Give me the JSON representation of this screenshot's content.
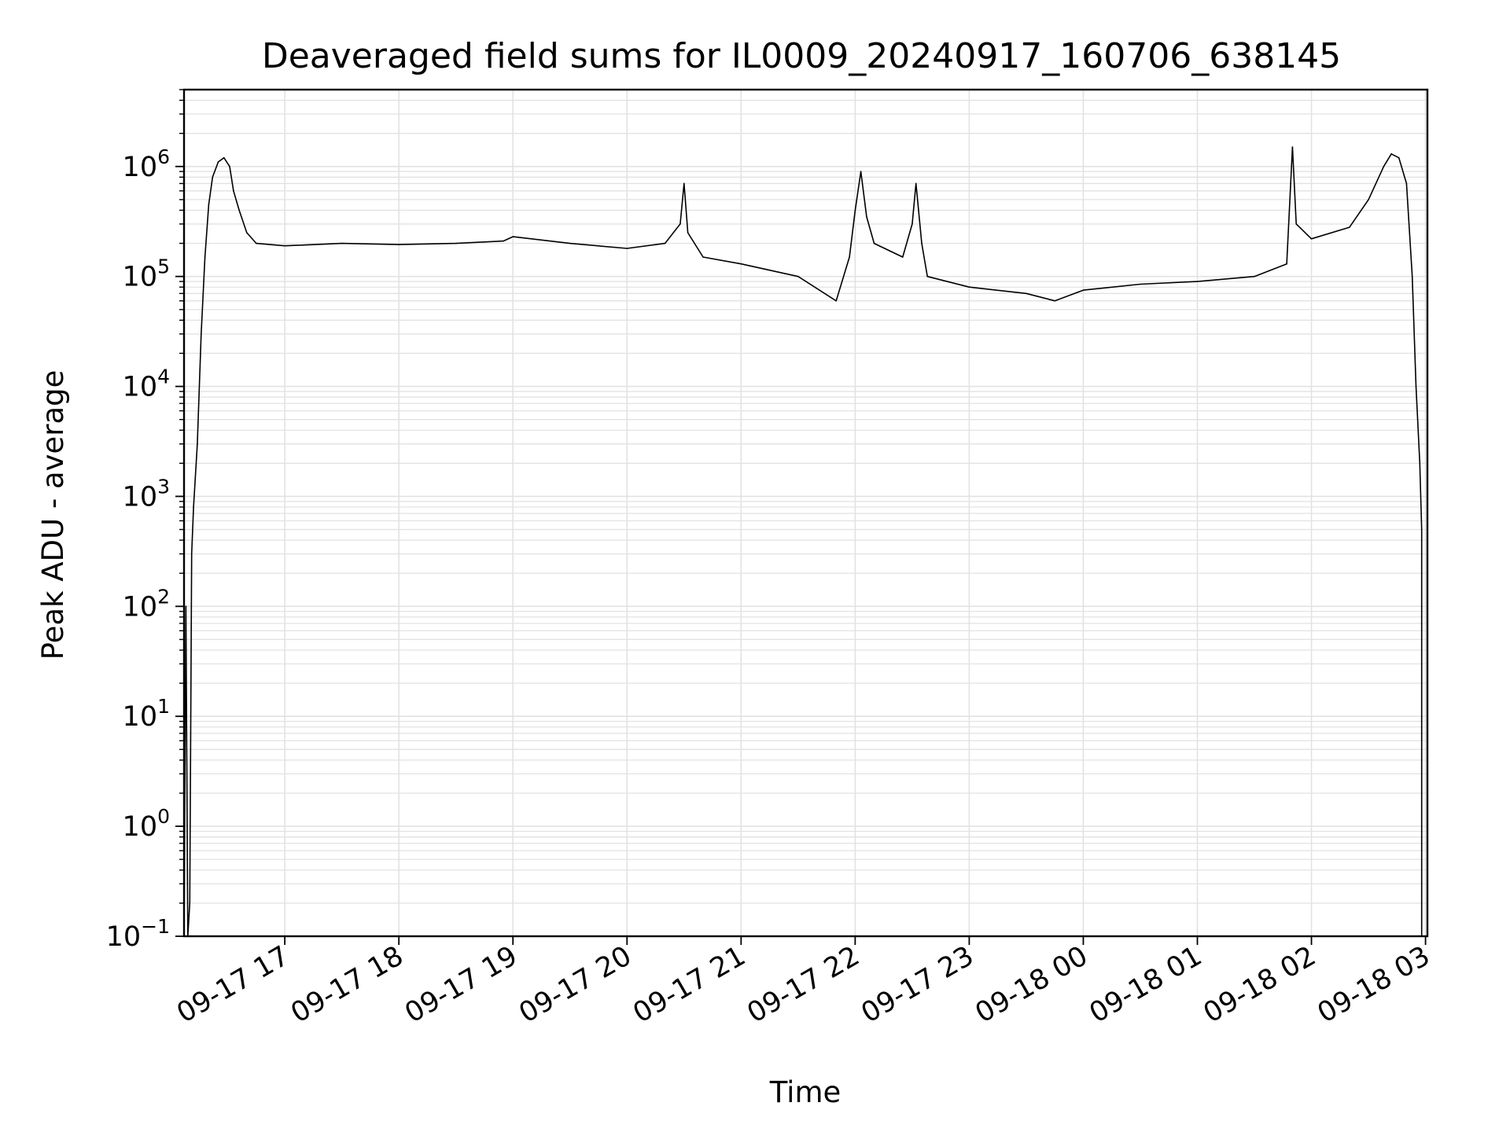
{
  "chart_data": {
    "type": "line",
    "title": "Deaveraged field sums for IL0009_20240917_160706_638145",
    "xlabel": "Time",
    "ylabel": "Peak ADU - average",
    "yscale": "log",
    "ylim": [
      0.1,
      5000000
    ],
    "xlim": [
      "2024-09-17 16:07",
      "2024-09-18 03:01"
    ],
    "grid": true,
    "line_color": "#000000",
    "grid_color": "#e2e2e2",
    "x_ticks": [
      {
        "value": "2024-09-17 17:00",
        "label": "09-17 17"
      },
      {
        "value": "2024-09-17 18:00",
        "label": "09-17 18"
      },
      {
        "value": "2024-09-17 19:00",
        "label": "09-17 19"
      },
      {
        "value": "2024-09-17 20:00",
        "label": "09-17 20"
      },
      {
        "value": "2024-09-17 21:00",
        "label": "09-17 21"
      },
      {
        "value": "2024-09-17 22:00",
        "label": "09-17 22"
      },
      {
        "value": "2024-09-17 23:00",
        "label": "09-17 23"
      },
      {
        "value": "2024-09-18 00:00",
        "label": "09-18 00"
      },
      {
        "value": "2024-09-18 01:00",
        "label": "09-18 01"
      },
      {
        "value": "2024-09-18 02:00",
        "label": "09-18 02"
      },
      {
        "value": "2024-09-18 03:00",
        "label": "09-18 03"
      }
    ],
    "y_ticks": [
      {
        "value": 0.1,
        "base": "10",
        "exp": "−1"
      },
      {
        "value": 1,
        "base": "10",
        "exp": "0"
      },
      {
        "value": 10,
        "base": "10",
        "exp": "1"
      },
      {
        "value": 100,
        "base": "10",
        "exp": "2"
      },
      {
        "value": 1000,
        "base": "10",
        "exp": "3"
      },
      {
        "value": 10000,
        "base": "10",
        "exp": "4"
      },
      {
        "value": 100000,
        "base": "10",
        "exp": "5"
      },
      {
        "value": 1000000,
        "base": "10",
        "exp": "6"
      }
    ],
    "series": [
      {
        "name": "",
        "points": [
          [
            "2024-09-17 16:07",
            0.1
          ],
          [
            "2024-09-17 16:08",
            100
          ],
          [
            "2024-09-17 16:09",
            0.1
          ],
          [
            "2024-09-17 16:10",
            0.2
          ],
          [
            "2024-09-17 16:11",
            300
          ],
          [
            "2024-09-17 16:12",
            800
          ],
          [
            "2024-09-17 16:14",
            3000
          ],
          [
            "2024-09-17 16:16",
            30000
          ],
          [
            "2024-09-17 16:18",
            150000
          ],
          [
            "2024-09-17 16:20",
            450000
          ],
          [
            "2024-09-17 16:22",
            800000
          ],
          [
            "2024-09-17 16:25",
            1100000
          ],
          [
            "2024-09-17 16:28",
            1200000
          ],
          [
            "2024-09-17 16:31",
            1000000
          ],
          [
            "2024-09-17 16:33",
            600000
          ],
          [
            "2024-09-17 16:36",
            400000
          ],
          [
            "2024-09-17 16:40",
            250000
          ],
          [
            "2024-09-17 16:45",
            200000
          ],
          [
            "2024-09-17 17:00",
            190000
          ],
          [
            "2024-09-17 17:30",
            200000
          ],
          [
            "2024-09-17 18:00",
            195000
          ],
          [
            "2024-09-17 18:30",
            200000
          ],
          [
            "2024-09-17 18:55",
            210000
          ],
          [
            "2024-09-17 19:00",
            230000
          ],
          [
            "2024-09-17 19:30",
            200000
          ],
          [
            "2024-09-17 20:00",
            180000
          ],
          [
            "2024-09-17 20:20",
            200000
          ],
          [
            "2024-09-17 20:28",
            300000
          ],
          [
            "2024-09-17 20:30",
            700000
          ],
          [
            "2024-09-17 20:32",
            250000
          ],
          [
            "2024-09-17 20:40",
            150000
          ],
          [
            "2024-09-17 21:00",
            130000
          ],
          [
            "2024-09-17 21:30",
            100000
          ],
          [
            "2024-09-17 21:50",
            60000
          ],
          [
            "2024-09-17 21:57",
            150000
          ],
          [
            "2024-09-17 22:00",
            400000
          ],
          [
            "2024-09-17 22:03",
            900000
          ],
          [
            "2024-09-17 22:06",
            350000
          ],
          [
            "2024-09-17 22:10",
            200000
          ],
          [
            "2024-09-17 22:25",
            150000
          ],
          [
            "2024-09-17 22:30",
            300000
          ],
          [
            "2024-09-17 22:32",
            700000
          ],
          [
            "2024-09-17 22:35",
            200000
          ],
          [
            "2024-09-17 22:38",
            100000
          ],
          [
            "2024-09-17 23:00",
            80000
          ],
          [
            "2024-09-17 23:30",
            70000
          ],
          [
            "2024-09-17 23:45",
            60000
          ],
          [
            "2024-09-18 00:00",
            75000
          ],
          [
            "2024-09-18 00:30",
            85000
          ],
          [
            "2024-09-18 01:00",
            90000
          ],
          [
            "2024-09-18 01:30",
            100000
          ],
          [
            "2024-09-18 01:47",
            130000
          ],
          [
            "2024-09-18 01:50",
            1500000
          ],
          [
            "2024-09-18 01:52",
            300000
          ],
          [
            "2024-09-18 02:00",
            220000
          ],
          [
            "2024-09-18 02:20",
            280000
          ],
          [
            "2024-09-18 02:30",
            500000
          ],
          [
            "2024-09-18 02:38",
            1000000
          ],
          [
            "2024-09-18 02:42",
            1300000
          ],
          [
            "2024-09-18 02:46",
            1200000
          ],
          [
            "2024-09-18 02:50",
            700000
          ],
          [
            "2024-09-18 02:53",
            100000
          ],
          [
            "2024-09-18 02:55",
            10000
          ],
          [
            "2024-09-18 02:57",
            2000
          ],
          [
            "2024-09-18 02:58",
            500
          ],
          [
            "2024-09-18 02:58",
            0.1
          ]
        ]
      }
    ]
  }
}
